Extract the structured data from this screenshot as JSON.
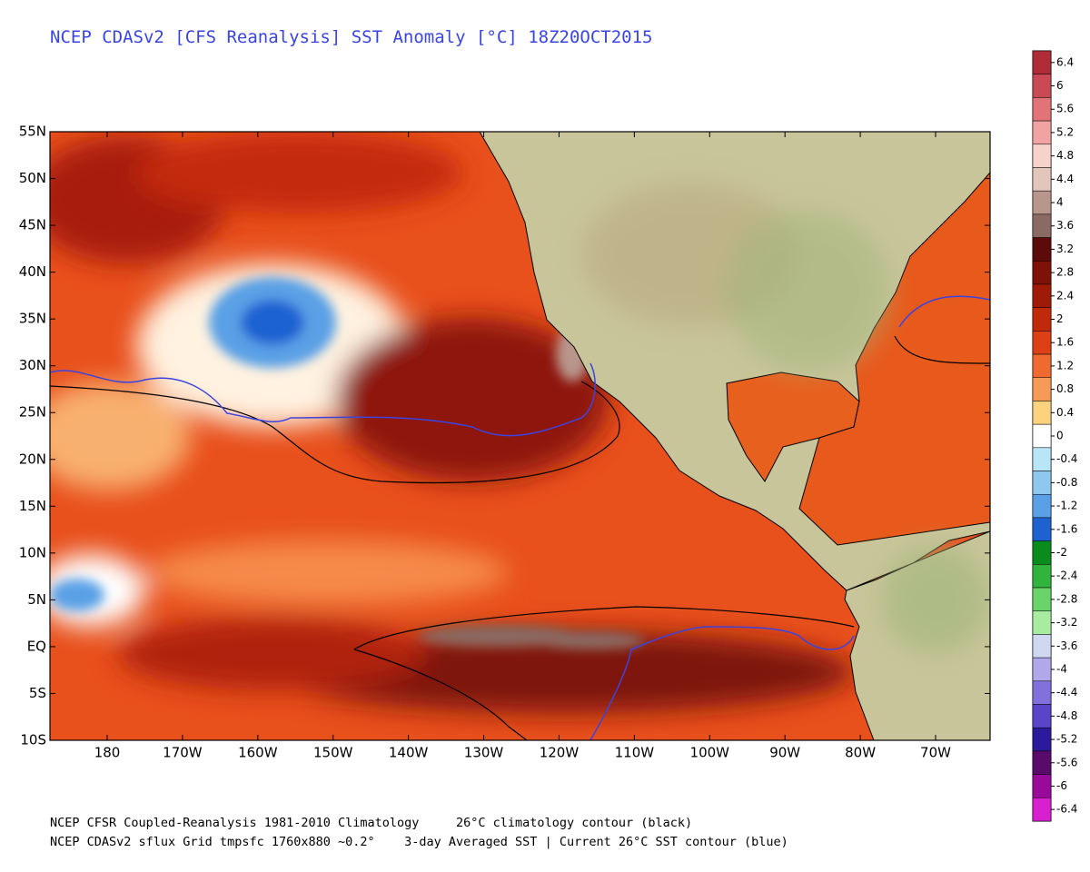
{
  "title": "NCEP CDASv2 [CFS Reanalysis] SST Anomaly [°C] 18Z20OCT2015",
  "map": {
    "lat_labels": [
      "55N",
      "50N",
      "45N",
      "40N",
      "35N",
      "30N",
      "25N",
      "20N",
      "15N",
      "10N",
      "5N",
      "EQ",
      "5S",
      "10S"
    ],
    "lon_labels": [
      "180",
      "170W",
      "160W",
      "150W",
      "140W",
      "130W",
      "120W",
      "110W",
      "100W",
      "90W",
      "80W",
      "70W"
    ]
  },
  "colorbar": {
    "ticks": [
      6.4,
      6,
      5.6,
      5.2,
      4.8,
      4.4,
      4,
      3.6,
      3.2,
      2.8,
      2.4,
      2,
      1.6,
      1.2,
      0.8,
      0.4,
      0,
      -0.4,
      -0.8,
      -1.2,
      -1.6,
      -2,
      -2.4,
      -2.8,
      -3.2,
      -3.6,
      -4,
      -4.4,
      -4.8,
      -5.2,
      -5.6,
      -6,
      -6.4
    ],
    "colors": [
      "#b02c36",
      "#c94a55",
      "#e27378",
      "#f1a2a2",
      "#f6d2cb",
      "#e2c6bc",
      "#b8968c",
      "#8a6a62",
      "#5c0a0a",
      "#7e1208",
      "#a01a08",
      "#c02a0a",
      "#dc4014",
      "#ee6a2e",
      "#f79a58",
      "#fcd27e",
      "#ffffff",
      "#b8e6f6",
      "#8ec8ee",
      "#5aa0e6",
      "#1e62d2",
      "#0a8c1c",
      "#30b43c",
      "#6ad46a",
      "#a8eca0",
      "#d0d8f0",
      "#b0a8ea",
      "#8270dc",
      "#5a44c8",
      "#2c1a9c",
      "#5a0a6a",
      "#9a0a9a",
      "#d820d0"
    ]
  },
  "footer": {
    "line1_left": "NCEP CFSR Coupled-Reanalysis 1981-2010 Climatology",
    "line1_right": "26°C climatology contour (black)",
    "line2_left": "NCEP CDASv2 sflux Grid tmpsfc 1760x880 ~0.2°",
    "line2_right": "3-day Averaged SST | Current 26°C SST contour (blue)"
  }
}
